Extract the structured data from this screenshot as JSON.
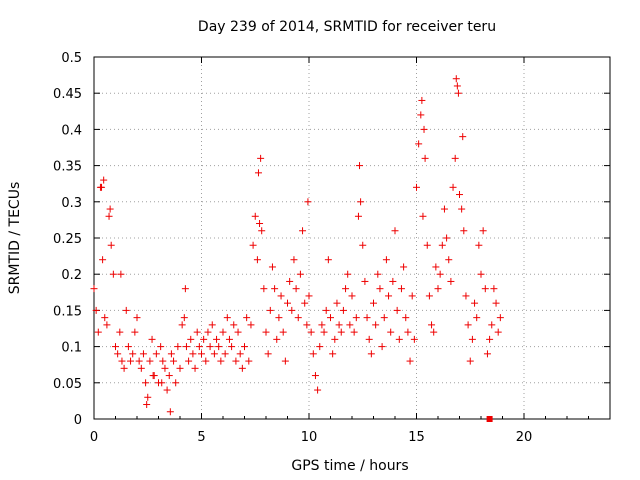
{
  "chart_data": {
    "type": "scatter",
    "title": "Day 239 of 2014, SRMTID for receiver teru",
    "xlabel": "GPS time / hours",
    "ylabel": "SRMTID / TECUs",
    "xlim": [
      0,
      24
    ],
    "ylim": [
      0,
      0.5
    ],
    "grid": true,
    "marker": "plus",
    "color": "#ee0000",
    "x_ticks": [
      {
        "value": 0,
        "label": "0"
      },
      {
        "value": 5,
        "label": "5"
      },
      {
        "value": 10,
        "label": "10"
      },
      {
        "value": 15,
        "label": "15"
      },
      {
        "value": 20,
        "label": "20"
      }
    ],
    "y_ticks": [
      {
        "value": 0,
        "label": "0"
      },
      {
        "value": 0.05,
        "label": "0.05"
      },
      {
        "value": 0.1,
        "label": "0.1"
      },
      {
        "value": 0.15,
        "label": "0.15"
      },
      {
        "value": 0.2,
        "label": "0.2"
      },
      {
        "value": 0.25,
        "label": "0.25"
      },
      {
        "value": 0.3,
        "label": "0.3"
      },
      {
        "value": 0.35,
        "label": "0.35"
      },
      {
        "value": 0.4,
        "label": "0.4"
      },
      {
        "value": 0.45,
        "label": "0.45"
      },
      {
        "value": 0.5,
        "label": "0.5"
      }
    ],
    "series": [
      {
        "name": "SRMTID",
        "x": [
          0.0,
          0.1,
          0.2,
          0.3,
          0.4,
          0.5,
          0.6,
          0.7,
          0.8,
          0.9,
          1.0,
          1.1,
          1.2,
          1.3,
          1.4,
          1.5,
          1.6,
          1.7,
          1.8,
          1.9,
          2.0,
          2.1,
          2.2,
          2.3,
          2.4,
          2.5,
          2.6,
          2.7,
          2.8,
          2.9,
          3.0,
          3.1,
          3.2,
          3.3,
          3.4,
          3.5,
          3.6,
          3.7,
          3.8,
          3.9,
          4.0,
          4.1,
          4.2,
          4.3,
          4.4,
          4.5,
          4.6,
          4.7,
          4.8,
          4.9,
          5.0,
          5.1,
          5.2,
          5.3,
          5.4,
          5.5,
          5.6,
          5.7,
          5.8,
          5.9,
          6.0,
          6.1,
          6.2,
          6.3,
          6.4,
          6.5,
          6.6,
          6.7,
          6.8,
          6.9,
          7.0,
          7.1,
          7.2,
          7.3,
          7.4,
          7.5,
          7.6,
          7.7,
          7.8,
          7.9,
          8.0,
          8.1,
          8.2,
          8.3,
          8.4,
          8.5,
          8.6,
          8.7,
          8.8,
          8.9,
          9.0,
          9.1,
          9.2,
          9.3,
          9.4,
          9.5,
          9.6,
          9.7,
          9.8,
          9.9,
          10.0,
          10.1,
          10.2,
          10.3,
          10.4,
          10.5,
          10.6,
          10.7,
          10.8,
          10.9,
          11.0,
          11.1,
          11.2,
          11.3,
          11.4,
          11.5,
          11.6,
          11.7,
          11.8,
          11.9,
          12.0,
          12.1,
          12.2,
          12.3,
          12.4,
          12.5,
          12.6,
          12.7,
          12.8,
          12.9,
          13.0,
          13.1,
          13.2,
          13.3,
          13.4,
          13.5,
          13.6,
          13.7,
          13.8,
          13.9,
          14.0,
          14.1,
          14.2,
          14.3,
          14.4,
          14.5,
          14.6,
          14.7,
          14.8,
          14.9,
          15.0,
          15.1,
          15.2,
          15.3,
          15.4,
          15.5,
          15.6,
          15.7,
          15.8,
          15.9,
          16.0,
          16.1,
          16.2,
          16.3,
          16.4,
          16.5,
          16.6,
          16.7,
          16.8,
          16.9,
          17.0,
          17.1,
          17.2,
          17.3,
          17.4,
          17.5,
          17.6,
          17.7,
          17.8,
          17.9,
          18.0,
          18.1,
          18.2,
          18.3,
          18.4,
          18.5,
          18.6,
          18.7,
          18.8,
          18.9,
          0.35,
          0.45,
          0.75,
          1.25,
          2.45,
          2.75,
          3.15,
          3.55,
          4.25,
          7.65,
          7.75,
          9.95,
          12.35,
          15.25,
          15.35,
          16.85,
          16.95,
          17.15
        ],
        "y": [
          0.18,
          0.15,
          0.12,
          0.32,
          0.22,
          0.14,
          0.13,
          0.28,
          0.24,
          0.2,
          0.1,
          0.09,
          0.12,
          0.08,
          0.07,
          0.15,
          0.1,
          0.08,
          0.09,
          0.12,
          0.14,
          0.08,
          0.07,
          0.09,
          0.05,
          0.03,
          0.08,
          0.11,
          0.06,
          0.09,
          0.05,
          0.1,
          0.08,
          0.07,
          0.04,
          0.06,
          0.09,
          0.08,
          0.05,
          0.1,
          0.07,
          0.13,
          0.14,
          0.1,
          0.08,
          0.11,
          0.09,
          0.07,
          0.12,
          0.1,
          0.09,
          0.11,
          0.08,
          0.12,
          0.1,
          0.13,
          0.09,
          0.11,
          0.1,
          0.08,
          0.12,
          0.09,
          0.14,
          0.11,
          0.1,
          0.13,
          0.08,
          0.12,
          0.09,
          0.07,
          0.1,
          0.14,
          0.08,
          0.13,
          0.24,
          0.28,
          0.22,
          0.27,
          0.26,
          0.18,
          0.12,
          0.09,
          0.15,
          0.21,
          0.18,
          0.11,
          0.14,
          0.17,
          0.12,
          0.08,
          0.16,
          0.19,
          0.15,
          0.22,
          0.18,
          0.14,
          0.2,
          0.26,
          0.16,
          0.13,
          0.17,
          0.12,
          0.09,
          0.06,
          0.04,
          0.1,
          0.13,
          0.12,
          0.15,
          0.22,
          0.14,
          0.09,
          0.11,
          0.16,
          0.13,
          0.12,
          0.15,
          0.18,
          0.2,
          0.13,
          0.17,
          0.12,
          0.14,
          0.28,
          0.3,
          0.24,
          0.19,
          0.14,
          0.11,
          0.09,
          0.16,
          0.13,
          0.2,
          0.18,
          0.1,
          0.14,
          0.22,
          0.17,
          0.12,
          0.19,
          0.26,
          0.15,
          0.11,
          0.18,
          0.21,
          0.14,
          0.12,
          0.08,
          0.17,
          0.11,
          0.32,
          0.38,
          0.42,
          0.28,
          0.36,
          0.24,
          0.17,
          0.13,
          0.12,
          0.21,
          0.18,
          0.2,
          0.24,
          0.29,
          0.25,
          0.22,
          0.19,
          0.32,
          0.36,
          0.46,
          0.31,
          0.29,
          0.26,
          0.17,
          0.13,
          0.08,
          0.11,
          0.16,
          0.14,
          0.24,
          0.2,
          0.26,
          0.18,
          0.09,
          0.11,
          0.13,
          0.18,
          0.16,
          0.12,
          0.14,
          0.32,
          0.33,
          0.29,
          0.2,
          0.02,
          0.06,
          0.05,
          0.01,
          0.18,
          0.34,
          0.36,
          0.3,
          0.35,
          0.44,
          0.4,
          0.47,
          0.45,
          0.39
        ],
        "special_point": {
          "x": 18.4,
          "y": 0.0,
          "marker": "square"
        }
      }
    ]
  }
}
